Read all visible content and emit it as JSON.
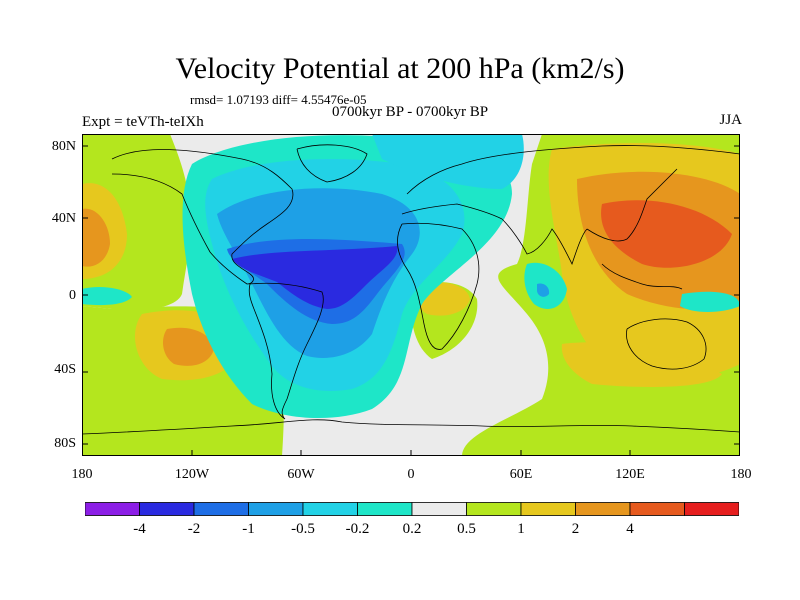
{
  "title": "Velocity Potential at 200 hPa (km2/s)",
  "stats": "rmsd= 1.07193 diff= 4.55476e-05",
  "period": "0700kyr BP - 0700kyr BP",
  "experiment": "Expt = teVTh-teIXh",
  "season": "JJA",
  "axes": {
    "y_ticks": [
      "80N",
      "40N",
      "0",
      "40S",
      "80S"
    ],
    "x_ticks": [
      "180",
      "120W",
      "60W",
      "0",
      "60E",
      "120E",
      "180"
    ]
  },
  "colorbar": {
    "labels": [
      "-4",
      "-2",
      "-1",
      "-0.5",
      "-0.2",
      "0.2",
      "0.5",
      "1",
      "2",
      "4"
    ],
    "colors": [
      "#8c1ee6",
      "#2a2ae0",
      "#1e6ee6",
      "#1ea0e6",
      "#22d2e6",
      "#1ee6c8",
      "#ebebeb",
      "#b4e61e",
      "#e6c81e",
      "#e6961e",
      "#e65a1e",
      "#e61e1e"
    ]
  },
  "colors": {
    "land_outline": "#000000",
    "neutral": "#ebebeb"
  }
}
